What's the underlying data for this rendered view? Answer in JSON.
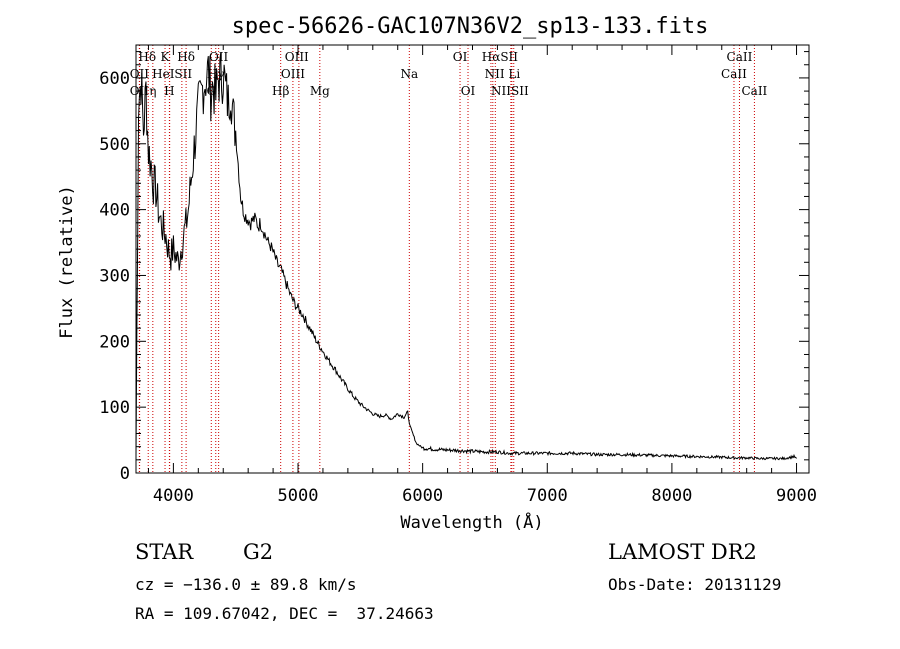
{
  "chart_data": {
    "type": "line",
    "title": "spec-56626-GAC107N36V2_sp13-133.fits",
    "xlabel": "Wavelength (Å)",
    "ylabel": "Flux (relative)",
    "xlim": [
      3700,
      9100
    ],
    "ylim": [
      0,
      650
    ],
    "xticks": [
      4000,
      5000,
      6000,
      7000,
      8000,
      9000
    ],
    "yticks": [
      0,
      100,
      200,
      300,
      400,
      500,
      600
    ],
    "series": [
      {
        "color": "#000000",
        "x": [
          3700,
          3720,
          3740,
          3760,
          3780,
          3800,
          3820,
          3840,
          3860,
          3880,
          3900,
          3920,
          3940,
          3960,
          3980,
          4000,
          4020,
          4040,
          4060,
          4080,
          4100,
          4120,
          4140,
          4160,
          4180,
          4200,
          4220,
          4240,
          4260,
          4280,
          4300,
          4320,
          4340,
          4360,
          4380,
          4400,
          4420,
          4440,
          4460,
          4480,
          4500,
          4520,
          4540,
          4560,
          4580,
          4600,
          4620,
          4640,
          4660,
          4680,
          4700,
          4720,
          4740,
          4760,
          4780,
          4800,
          4820,
          4840,
          4860,
          4880,
          4900,
          4920,
          4940,
          4960,
          4980,
          5000,
          5020,
          5040,
          5060,
          5080,
          5100,
          5150,
          5200,
          5250,
          5300,
          5350,
          5400,
          5450,
          5500,
          5550,
          5600,
          5650,
          5700,
          5750,
          5800,
          5850,
          5880,
          5900,
          5920,
          5950,
          6000,
          6100,
          6200,
          6300,
          6400,
          6500,
          6600,
          6700,
          6800,
          7000,
          7200,
          7400,
          7600,
          7800,
          8000,
          8200,
          8400,
          8500,
          8600,
          8700,
          8800,
          8900,
          8950,
          8980,
          9000
        ],
        "values": [
          25,
          560,
          600,
          520,
          580,
          490,
          470,
          440,
          430,
          400,
          380,
          370,
          360,
          340,
          330,
          340,
          330,
          320,
          340,
          360,
          375,
          400,
          440,
          480,
          520,
          550,
          570,
          590,
          600,
          610,
          580,
          590,
          570,
          600,
          600,
          610,
          580,
          560,
          590,
          540,
          520,
          470,
          420,
          400,
          390,
          385,
          380,
          385,
          385,
          375,
          380,
          370,
          360,
          350,
          345,
          335,
          325,
          315,
          310,
          300,
          290,
          280,
          270,
          262,
          255,
          250,
          245,
          240,
          232,
          225,
          218,
          200,
          185,
          170,
          157,
          142,
          128,
          115,
          105,
          97,
          90,
          86,
          88,
          82,
          90,
          85,
          92,
          70,
          60,
          45,
          38,
          36,
          35,
          34,
          33,
          32,
          32,
          30,
          30,
          30,
          30,
          28,
          28,
          27,
          26,
          25,
          24,
          23,
          23,
          22,
          22,
          22,
          24,
          25,
          22
        ]
      }
    ],
    "line_marks": [
      {
        "label": "Hδ",
        "x": 3798
      },
      {
        "label": "OII",
        "x": 3727
      },
      {
        "label": "OII",
        "x": 3729
      },
      {
        "label": "K",
        "x": 3933
      },
      {
        "label": "H",
        "x": 3968
      },
      {
        "label": "Hε",
        "x": 3970
      },
      {
        "label": "Hη",
        "x": 3835
      },
      {
        "label": "SII",
        "x": 4068
      },
      {
        "label": "Hδ",
        "x": 4102
      },
      {
        "label": "Hγ",
        "x": 4340
      },
      {
        "label": "G",
        "x": 4304
      },
      {
        "label": "OIII",
        "x": 4363
      },
      {
        "label": "Hβ",
        "x": 4861
      },
      {
        "label": "OIII",
        "x": 4959
      },
      {
        "label": "OIII",
        "x": 5007
      },
      {
        "label": "Mg",
        "x": 5175
      },
      {
        "label": "Na",
        "x": 5893
      },
      {
        "label": "OI",
        "x": 6300
      },
      {
        "label": "OI",
        "x": 6364
      },
      {
        "label": "NII",
        "x": 6548
      },
      {
        "label": "Hα",
        "x": 6563
      },
      {
        "label": "NII",
        "x": 6583
      },
      {
        "label": "Li",
        "x": 6708
      },
      {
        "label": "SII",
        "x": 6716
      },
      {
        "label": "SII",
        "x": 6731
      },
      {
        "label": "CaII",
        "x": 8498
      },
      {
        "label": "CaII",
        "x": 8542
      },
      {
        "label": "CaII",
        "x": 8662
      }
    ],
    "line_labels": [
      {
        "text": "Hδ",
        "x": 3790,
        "row": 0
      },
      {
        "text": "K",
        "x": 3933,
        "row": 0
      },
      {
        "text": "Hδ",
        "x": 4102,
        "row": 0
      },
      {
        "text": "OII",
        "x": 4363,
        "row": 0
      },
      {
        "text": "OIII",
        "x": 4990,
        "row": 0
      },
      {
        "text": "OI",
        "x": 6300,
        "row": 0
      },
      {
        "text": "HαSII",
        "x": 6620,
        "row": 0
      },
      {
        "text": "CaII",
        "x": 8542,
        "row": 0
      },
      {
        "text": "OII",
        "x": 3727,
        "row": 1
      },
      {
        "text": "HeISII",
        "x": 3990,
        "row": 1
      },
      {
        "text": "Hγ",
        "x": 4340,
        "row": 1
      },
      {
        "text": "OIII",
        "x": 4959,
        "row": 1
      },
      {
        "text": "Na",
        "x": 5893,
        "row": 1
      },
      {
        "text": "NII Li",
        "x": 6640,
        "row": 1
      },
      {
        "text": "CaII",
        "x": 8498,
        "row": 1
      },
      {
        "text": "OII",
        "x": 3727,
        "row": 2
      },
      {
        "text": "η",
        "x": 3835,
        "row": 2
      },
      {
        "text": "H",
        "x": 3968,
        "row": 2
      },
      {
        "text": "G",
        "x": 4304,
        "row": 2
      },
      {
        "text": "Hβ",
        "x": 4861,
        "row": 2
      },
      {
        "text": "Mg",
        "x": 5175,
        "row": 2
      },
      {
        "text": "OI",
        "x": 6364,
        "row": 2
      },
      {
        "text": "NIISII",
        "x": 6700,
        "row": 2
      },
      {
        "text": "CaII",
        "x": 8662,
        "row": 2
      }
    ]
  },
  "info": {
    "object_type": "STAR",
    "subclass": "G2",
    "survey": "LAMOST DR2",
    "redshift": "cz = −136.0 ± 89.8 km/s",
    "obs_date": "Obs-Date: 20131129",
    "coords": "RA = 109.67042, DEC =  37.24663"
  }
}
